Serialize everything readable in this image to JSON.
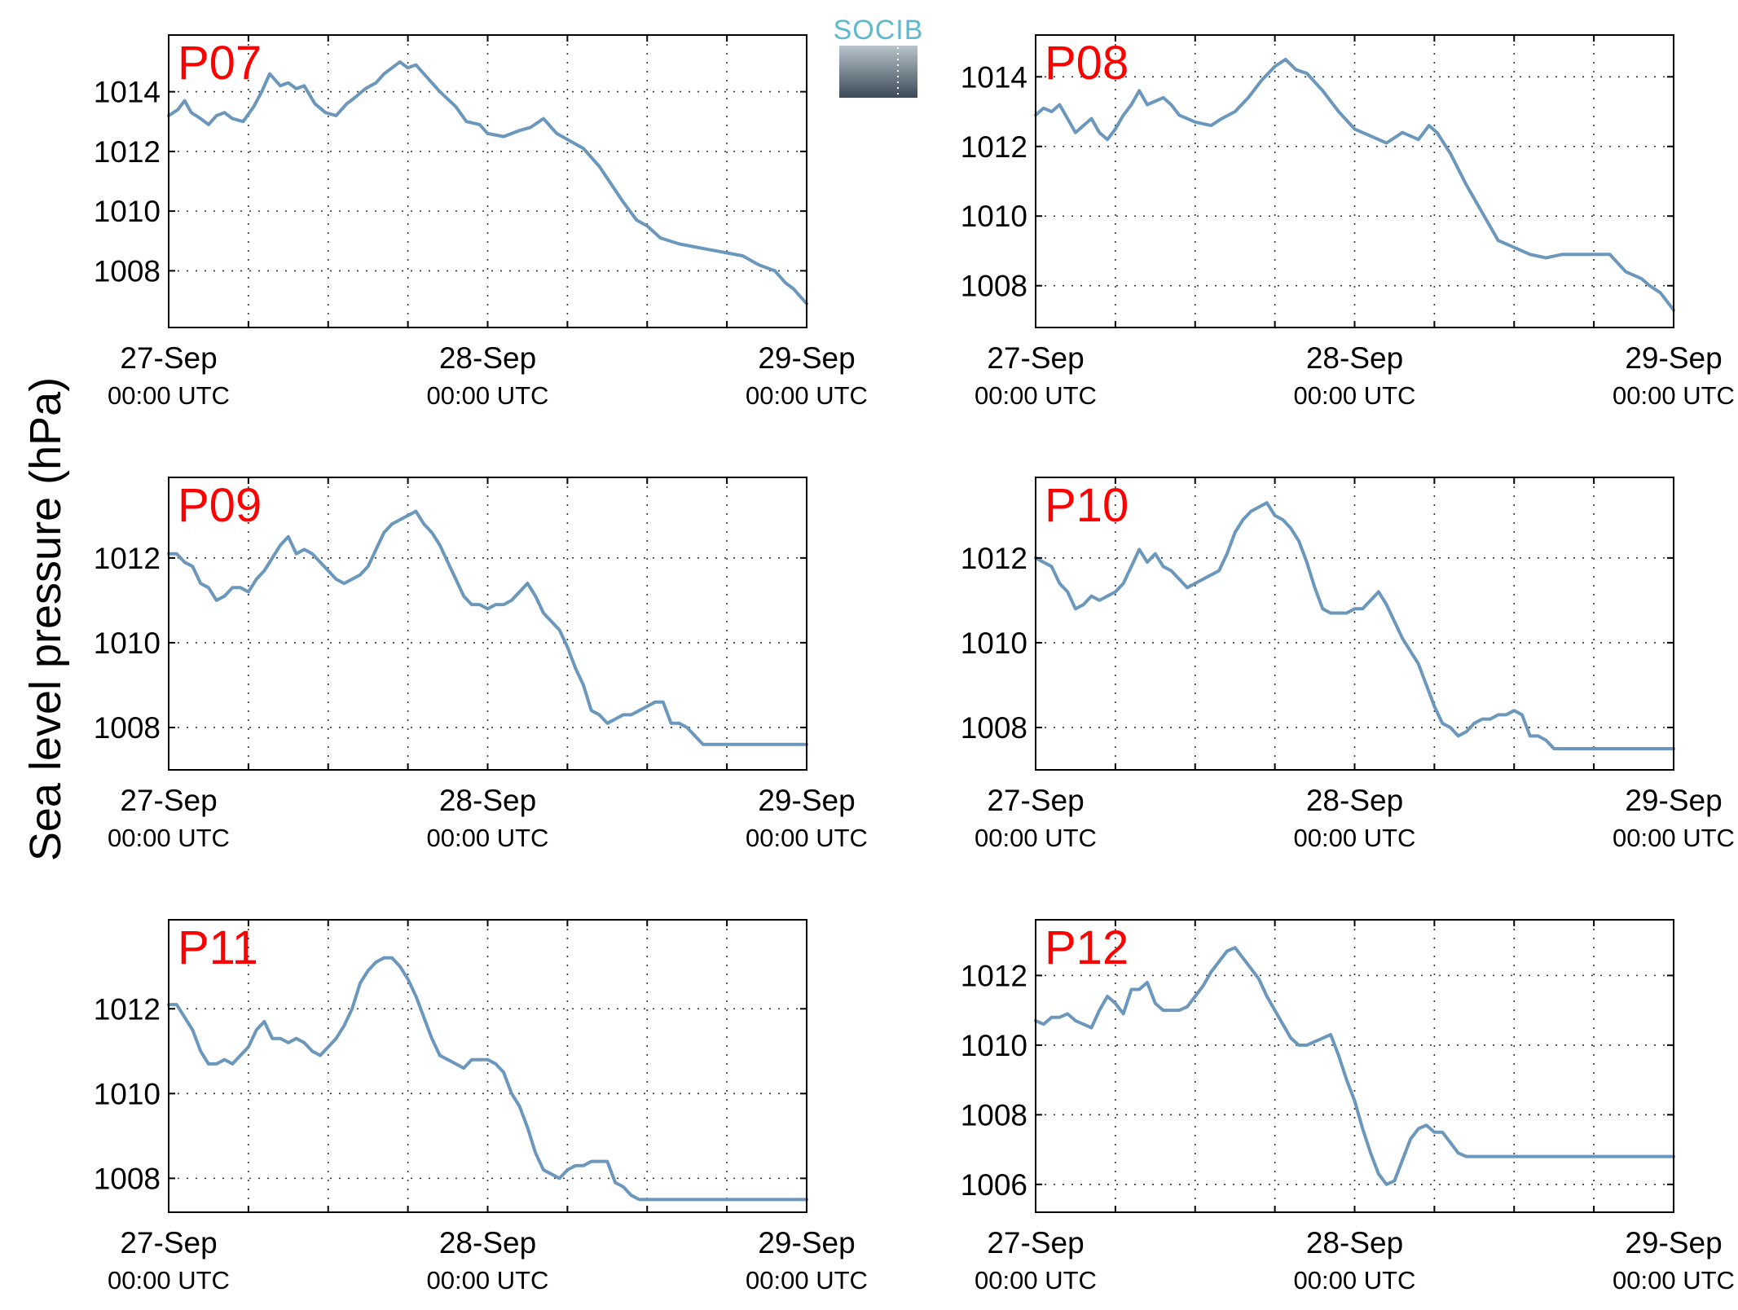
{
  "figure": {
    "ylabel": "Sea level pressure (hPa)",
    "logo_text": "SOCIB"
  },
  "colors": {
    "line": "#6a97bb",
    "panel_label": "#ff0000",
    "grid": "#333333",
    "logo_text": "#5fb8cf"
  },
  "chart_data": [
    {
      "type": "line",
      "panel": "P07",
      "x_tick_dates": [
        "27-Sep",
        "28-Sep",
        "29-Sep"
      ],
      "x_tick_times": [
        "00:00 UTC",
        "00:00 UTC",
        "00:00 UTC"
      ],
      "xlim": [
        0,
        48
      ],
      "ylim": [
        1006.1,
        1015.9
      ],
      "yticks": [
        1008,
        1010,
        1012,
        1014
      ],
      "grid": true,
      "series": [
        {
          "x": [
            0,
            0.7,
            1.2,
            1.7,
            2.4,
            3,
            3.6,
            4.2,
            4.8,
            5.6,
            6.4,
            7,
            7.6,
            8.4,
            9,
            9.6,
            10.2,
            11,
            11.8,
            12.6,
            13.4,
            14,
            14.8,
            15.6,
            16.2,
            16.8,
            17.4,
            18,
            18.6,
            19.2,
            20.4,
            21.6,
            22.4,
            23.4,
            24,
            25.2,
            26.4,
            27.2,
            28.2,
            29.2,
            30.4,
            31.2,
            32.4,
            33.6,
            34.2,
            35.2,
            36,
            37,
            38.4,
            39.6,
            40.8,
            42,
            43.2,
            44.4,
            45.6,
            46.4,
            47,
            48
          ],
          "y": [
            1013.2,
            1013.4,
            1013.7,
            1013.3,
            1013.1,
            1012.9,
            1013.2,
            1013.3,
            1013.1,
            1013,
            1013.5,
            1014,
            1014.6,
            1014.2,
            1014.3,
            1014.1,
            1014.2,
            1013.6,
            1013.3,
            1013.2,
            1013.6,
            1013.8,
            1014.1,
            1014.3,
            1014.6,
            1014.8,
            1015,
            1014.8,
            1014.9,
            1014.6,
            1014,
            1013.5,
            1013,
            1012.9,
            1012.6,
            1012.5,
            1012.7,
            1012.8,
            1013.1,
            1012.6,
            1012.3,
            1012.1,
            1011.5,
            1010.7,
            1010.3,
            1009.7,
            1009.5,
            1009.1,
            1008.9,
            1008.8,
            1008.7,
            1008.6,
            1008.5,
            1008.2,
            1008,
            1007.6,
            1007.4,
            1006.9
          ]
        }
      ]
    },
    {
      "type": "line",
      "panel": "P08",
      "x_tick_dates": [
        "27-Sep",
        "28-Sep",
        "29-Sep"
      ],
      "x_tick_times": [
        "00:00 UTC",
        "00:00 UTC",
        "00:00 UTC"
      ],
      "xlim": [
        0,
        48
      ],
      "ylim": [
        1006.8,
        1015.2
      ],
      "yticks": [
        1008,
        1010,
        1012,
        1014
      ],
      "grid": true,
      "series": [
        {
          "x": [
            0,
            0.6,
            1.2,
            1.8,
            2.4,
            3,
            3.6,
            4.2,
            4.8,
            5.4,
            6,
            6.6,
            7.2,
            7.8,
            8.4,
            9.6,
            10.2,
            10.8,
            12,
            13.2,
            14,
            15,
            16,
            17,
            18,
            18.8,
            19.6,
            20.4,
            21.6,
            22.8,
            24,
            25.2,
            26.4,
            27.6,
            28.8,
            29.6,
            30.2,
            31.2,
            32.4,
            33.6,
            34.8,
            36,
            37.2,
            38.4,
            39.6,
            40.8,
            42,
            43.2,
            44.4,
            45.6,
            46.2,
            47,
            48
          ],
          "y": [
            1012.9,
            1013.1,
            1013,
            1013.2,
            1012.8,
            1012.4,
            1012.6,
            1012.8,
            1012.4,
            1012.2,
            1012.5,
            1012.9,
            1013.2,
            1013.6,
            1013.2,
            1013.4,
            1013.2,
            1012.9,
            1012.7,
            1012.6,
            1012.8,
            1013,
            1013.4,
            1013.9,
            1014.3,
            1014.5,
            1014.2,
            1014.1,
            1013.6,
            1013,
            1012.5,
            1012.3,
            1012.1,
            1012.4,
            1012.2,
            1012.6,
            1012.4,
            1011.8,
            1010.9,
            1010.1,
            1009.3,
            1009.1,
            1008.9,
            1008.8,
            1008.9,
            1008.9,
            1008.9,
            1008.9,
            1008.4,
            1008.2,
            1008,
            1007.8,
            1007.3
          ]
        }
      ]
    },
    {
      "type": "line",
      "panel": "P09",
      "x_tick_dates": [
        "27-Sep",
        "28-Sep",
        "29-Sep"
      ],
      "x_tick_times": [
        "00:00 UTC",
        "00:00 UTC",
        "00:00 UTC"
      ],
      "xlim": [
        0,
        48
      ],
      "ylim": [
        1007,
        1013.9
      ],
      "yticks": [
        1008,
        1010,
        1012
      ],
      "grid": true,
      "series": [
        {
          "x": [
            0,
            0.6,
            1.2,
            1.8,
            2.4,
            3,
            3.6,
            4.2,
            4.8,
            5.4,
            6,
            6.6,
            7.2,
            7.8,
            8.4,
            9,
            9.6,
            10.2,
            10.8,
            11.4,
            12,
            12.6,
            13.2,
            13.8,
            14.4,
            15,
            15.6,
            16.2,
            16.8,
            17.4,
            18,
            18.6,
            19.2,
            19.8,
            20.4,
            21,
            21.6,
            22.2,
            22.8,
            23.4,
            24,
            24.6,
            25.2,
            25.8,
            26.4,
            27,
            27.6,
            28.2,
            28.8,
            29.4,
            30,
            30.6,
            31.2,
            31.8,
            32.4,
            33,
            33.6,
            34.2,
            34.8,
            35.4,
            36,
            36.6,
            37.2,
            37.8,
            38.4,
            39,
            39.6,
            40.2,
            40.8,
            41.4,
            42,
            42.6,
            43.2,
            43.8,
            44.4,
            45,
            45.6,
            46.2,
            46.8,
            47.4,
            48
          ],
          "y": [
            1012.1,
            1012.1,
            1011.9,
            1011.8,
            1011.4,
            1011.3,
            1011,
            1011.1,
            1011.3,
            1011.3,
            1011.2,
            1011.5,
            1011.7,
            1012,
            1012.3,
            1012.5,
            1012.1,
            1012.2,
            1012.1,
            1011.9,
            1011.7,
            1011.5,
            1011.4,
            1011.5,
            1011.6,
            1011.8,
            1012.2,
            1012.6,
            1012.8,
            1012.9,
            1013,
            1013.1,
            1012.8,
            1012.6,
            1012.3,
            1011.9,
            1011.5,
            1011.1,
            1010.9,
            1010.9,
            1010.8,
            1010.9,
            1010.9,
            1011,
            1011.2,
            1011.4,
            1011.1,
            1010.7,
            1010.5,
            1010.3,
            1009.9,
            1009.4,
            1009,
            1008.4,
            1008.3,
            1008.1,
            1008.2,
            1008.3,
            1008.3,
            1008.4,
            1008.5,
            1008.6,
            1008.6,
            1008.1,
            1008.1,
            1008,
            1007.8,
            1007.6,
            1007.6,
            1007.6,
            1007.6,
            1007.6,
            1007.6,
            1007.6,
            1007.6,
            1007.6,
            1007.6,
            1007.6,
            1007.6,
            1007.6,
            1007.6
          ]
        }
      ]
    },
    {
      "type": "line",
      "panel": "P10",
      "x_tick_dates": [
        "27-Sep",
        "28-Sep",
        "29-Sep"
      ],
      "x_tick_times": [
        "00:00 UTC",
        "00:00 UTC",
        "00:00 UTC"
      ],
      "xlim": [
        0,
        48
      ],
      "ylim": [
        1007,
        1013.9
      ],
      "yticks": [
        1008,
        1010,
        1012
      ],
      "grid": true,
      "series": [
        {
          "x": [
            0,
            0.6,
            1.2,
            1.8,
            2.4,
            3,
            3.6,
            4.2,
            4.8,
            5.4,
            6,
            6.6,
            7.2,
            7.8,
            8.4,
            9,
            9.6,
            10.2,
            10.8,
            11.4,
            12,
            12.6,
            13.2,
            13.8,
            14.4,
            15,
            15.6,
            16.2,
            16.8,
            17.4,
            18,
            18.6,
            19.2,
            19.8,
            20.4,
            21,
            21.6,
            22.2,
            22.8,
            23.4,
            24,
            24.6,
            25.2,
            25.8,
            26.4,
            27,
            27.6,
            28.2,
            28.8,
            29.4,
            30,
            30.6,
            31.2,
            31.8,
            32.4,
            33,
            33.6,
            34.2,
            34.8,
            35.4,
            36,
            36.6,
            37.2,
            37.8,
            38.4,
            39,
            39.6,
            40.2,
            40.8,
            41.4,
            42,
            42.6,
            43.2,
            43.8,
            44.4,
            45,
            45.6,
            46.2,
            46.8,
            47.4,
            48
          ],
          "y": [
            1012,
            1011.9,
            1011.8,
            1011.4,
            1011.2,
            1010.8,
            1010.9,
            1011.1,
            1011,
            1011.1,
            1011.2,
            1011.4,
            1011.8,
            1012.2,
            1011.9,
            1012.1,
            1011.8,
            1011.7,
            1011.5,
            1011.3,
            1011.4,
            1011.5,
            1011.6,
            1011.7,
            1012.1,
            1012.6,
            1012.9,
            1013.1,
            1013.2,
            1013.3,
            1013,
            1012.9,
            1012.7,
            1012.4,
            1011.9,
            1011.3,
            1010.8,
            1010.7,
            1010.7,
            1010.7,
            1010.8,
            1010.8,
            1011,
            1011.2,
            1010.9,
            1010.5,
            1010.1,
            1009.8,
            1009.5,
            1009,
            1008.5,
            1008.1,
            1008,
            1007.8,
            1007.9,
            1008.1,
            1008.2,
            1008.2,
            1008.3,
            1008.3,
            1008.4,
            1008.3,
            1007.8,
            1007.8,
            1007.7,
            1007.5,
            1007.5,
            1007.5,
            1007.5,
            1007.5,
            1007.5,
            1007.5,
            1007.5,
            1007.5,
            1007.5,
            1007.5,
            1007.5,
            1007.5,
            1007.5,
            1007.5,
            1007.5
          ]
        }
      ]
    },
    {
      "type": "line",
      "panel": "P11",
      "x_tick_dates": [
        "27-Sep",
        "28-Sep",
        "29-Sep"
      ],
      "x_tick_times": [
        "00:00 UTC",
        "00:00 UTC",
        "00:00 UTC"
      ],
      "xlim": [
        0,
        48
      ],
      "ylim": [
        1007.2,
        1014.1
      ],
      "yticks": [
        1008,
        1010,
        1012
      ],
      "grid": true,
      "series": [
        {
          "x": [
            0,
            0.6,
            1.2,
            1.8,
            2.4,
            3,
            3.6,
            4.2,
            4.8,
            5.4,
            6,
            6.6,
            7.2,
            7.8,
            8.4,
            9,
            9.6,
            10.2,
            10.8,
            11.4,
            12,
            12.6,
            13.2,
            13.8,
            14.4,
            15,
            15.6,
            16.2,
            16.8,
            17.4,
            18,
            18.6,
            19.2,
            19.8,
            20.4,
            21,
            21.6,
            22.2,
            22.8,
            23.4,
            24,
            24.6,
            25.2,
            25.8,
            26.4,
            27,
            27.6,
            28.2,
            28.8,
            29.4,
            30,
            30.6,
            31.2,
            31.8,
            32.4,
            33,
            33.6,
            34.2,
            34.8,
            35.4,
            36,
            36.6,
            37.2,
            37.8,
            38.4,
            39,
            39.6,
            40.2,
            40.8,
            41.4,
            42,
            42.6,
            43.2,
            43.8,
            44.4,
            45,
            45.6,
            46.2,
            46.8,
            47.4,
            48
          ],
          "y": [
            1012.1,
            1012.1,
            1011.8,
            1011.5,
            1011,
            1010.7,
            1010.7,
            1010.8,
            1010.7,
            1010.9,
            1011.1,
            1011.5,
            1011.7,
            1011.3,
            1011.3,
            1011.2,
            1011.3,
            1011.2,
            1011,
            1010.9,
            1011.1,
            1011.3,
            1011.6,
            1012,
            1012.6,
            1012.9,
            1013.1,
            1013.2,
            1013.2,
            1013,
            1012.7,
            1012.3,
            1011.8,
            1011.3,
            1010.9,
            1010.8,
            1010.7,
            1010.6,
            1010.8,
            1010.8,
            1010.8,
            1010.7,
            1010.5,
            1010,
            1009.7,
            1009.2,
            1008.6,
            1008.2,
            1008.1,
            1008,
            1008.2,
            1008.3,
            1008.3,
            1008.4,
            1008.4,
            1008.4,
            1007.9,
            1007.8,
            1007.6,
            1007.5,
            1007.5,
            1007.5,
            1007.5,
            1007.5,
            1007.5,
            1007.5,
            1007.5,
            1007.5,
            1007.5,
            1007.5,
            1007.5,
            1007.5,
            1007.5,
            1007.5,
            1007.5,
            1007.5,
            1007.5,
            1007.5,
            1007.5,
            1007.5,
            1007.5
          ]
        }
      ]
    },
    {
      "type": "line",
      "panel": "P12",
      "x_tick_dates": [
        "27-Sep",
        "28-Sep",
        "29-Sep"
      ],
      "x_tick_times": [
        "00:00 UTC",
        "00:00 UTC",
        "00:00 UTC"
      ],
      "xlim": [
        0,
        48
      ],
      "ylim": [
        1005.2,
        1013.6
      ],
      "yticks": [
        1006,
        1008,
        1010,
        1012
      ],
      "grid": true,
      "series": [
        {
          "x": [
            0,
            0.6,
            1.2,
            1.8,
            2.4,
            3,
            3.6,
            4.2,
            4.8,
            5.4,
            6,
            6.6,
            7.2,
            7.8,
            8.4,
            9,
            9.6,
            10.2,
            10.8,
            11.4,
            12,
            12.6,
            13.2,
            13.8,
            14.4,
            15,
            15.6,
            16.2,
            16.8,
            17.4,
            18,
            18.6,
            19.2,
            19.8,
            20.4,
            21,
            21.6,
            22.2,
            22.8,
            23.4,
            24,
            24.6,
            25.2,
            25.8,
            26.4,
            27,
            27.6,
            28.2,
            28.8,
            29.4,
            30,
            30.6,
            31.2,
            31.8,
            32.4,
            33,
            33.6,
            34.2,
            34.8,
            35.4,
            36,
            36.6,
            37.2,
            37.8,
            38.4,
            39,
            39.6,
            40.2,
            40.8,
            41.4,
            42,
            42.6,
            43.2,
            43.8,
            44.4,
            45,
            45.6,
            46.2,
            46.8,
            47.4,
            48
          ],
          "y": [
            1010.7,
            1010.6,
            1010.8,
            1010.8,
            1010.9,
            1010.7,
            1010.6,
            1010.5,
            1011,
            1011.4,
            1011.2,
            1010.9,
            1011.6,
            1011.6,
            1011.8,
            1011.2,
            1011,
            1011,
            1011,
            1011.1,
            1011.4,
            1011.7,
            1012.1,
            1012.4,
            1012.7,
            1012.8,
            1012.5,
            1012.2,
            1011.9,
            1011.4,
            1011,
            1010.6,
            1010.2,
            1010,
            1010,
            1010.1,
            1010.2,
            1010.3,
            1009.7,
            1009,
            1008.4,
            1007.6,
            1006.9,
            1006.3,
            1006,
            1006.1,
            1006.7,
            1007.3,
            1007.6,
            1007.7,
            1007.5,
            1007.5,
            1007.2,
            1006.9,
            1006.8,
            1006.8,
            1006.8,
            1006.8,
            1006.8,
            1006.8,
            1006.8,
            1006.8,
            1006.8,
            1006.8,
            1006.8,
            1006.8,
            1006.8,
            1006.8,
            1006.8,
            1006.8,
            1006.8,
            1006.8,
            1006.8,
            1006.8,
            1006.8,
            1006.8,
            1006.8,
            1006.8,
            1006.8,
            1006.8,
            1006.8
          ]
        }
      ]
    }
  ]
}
